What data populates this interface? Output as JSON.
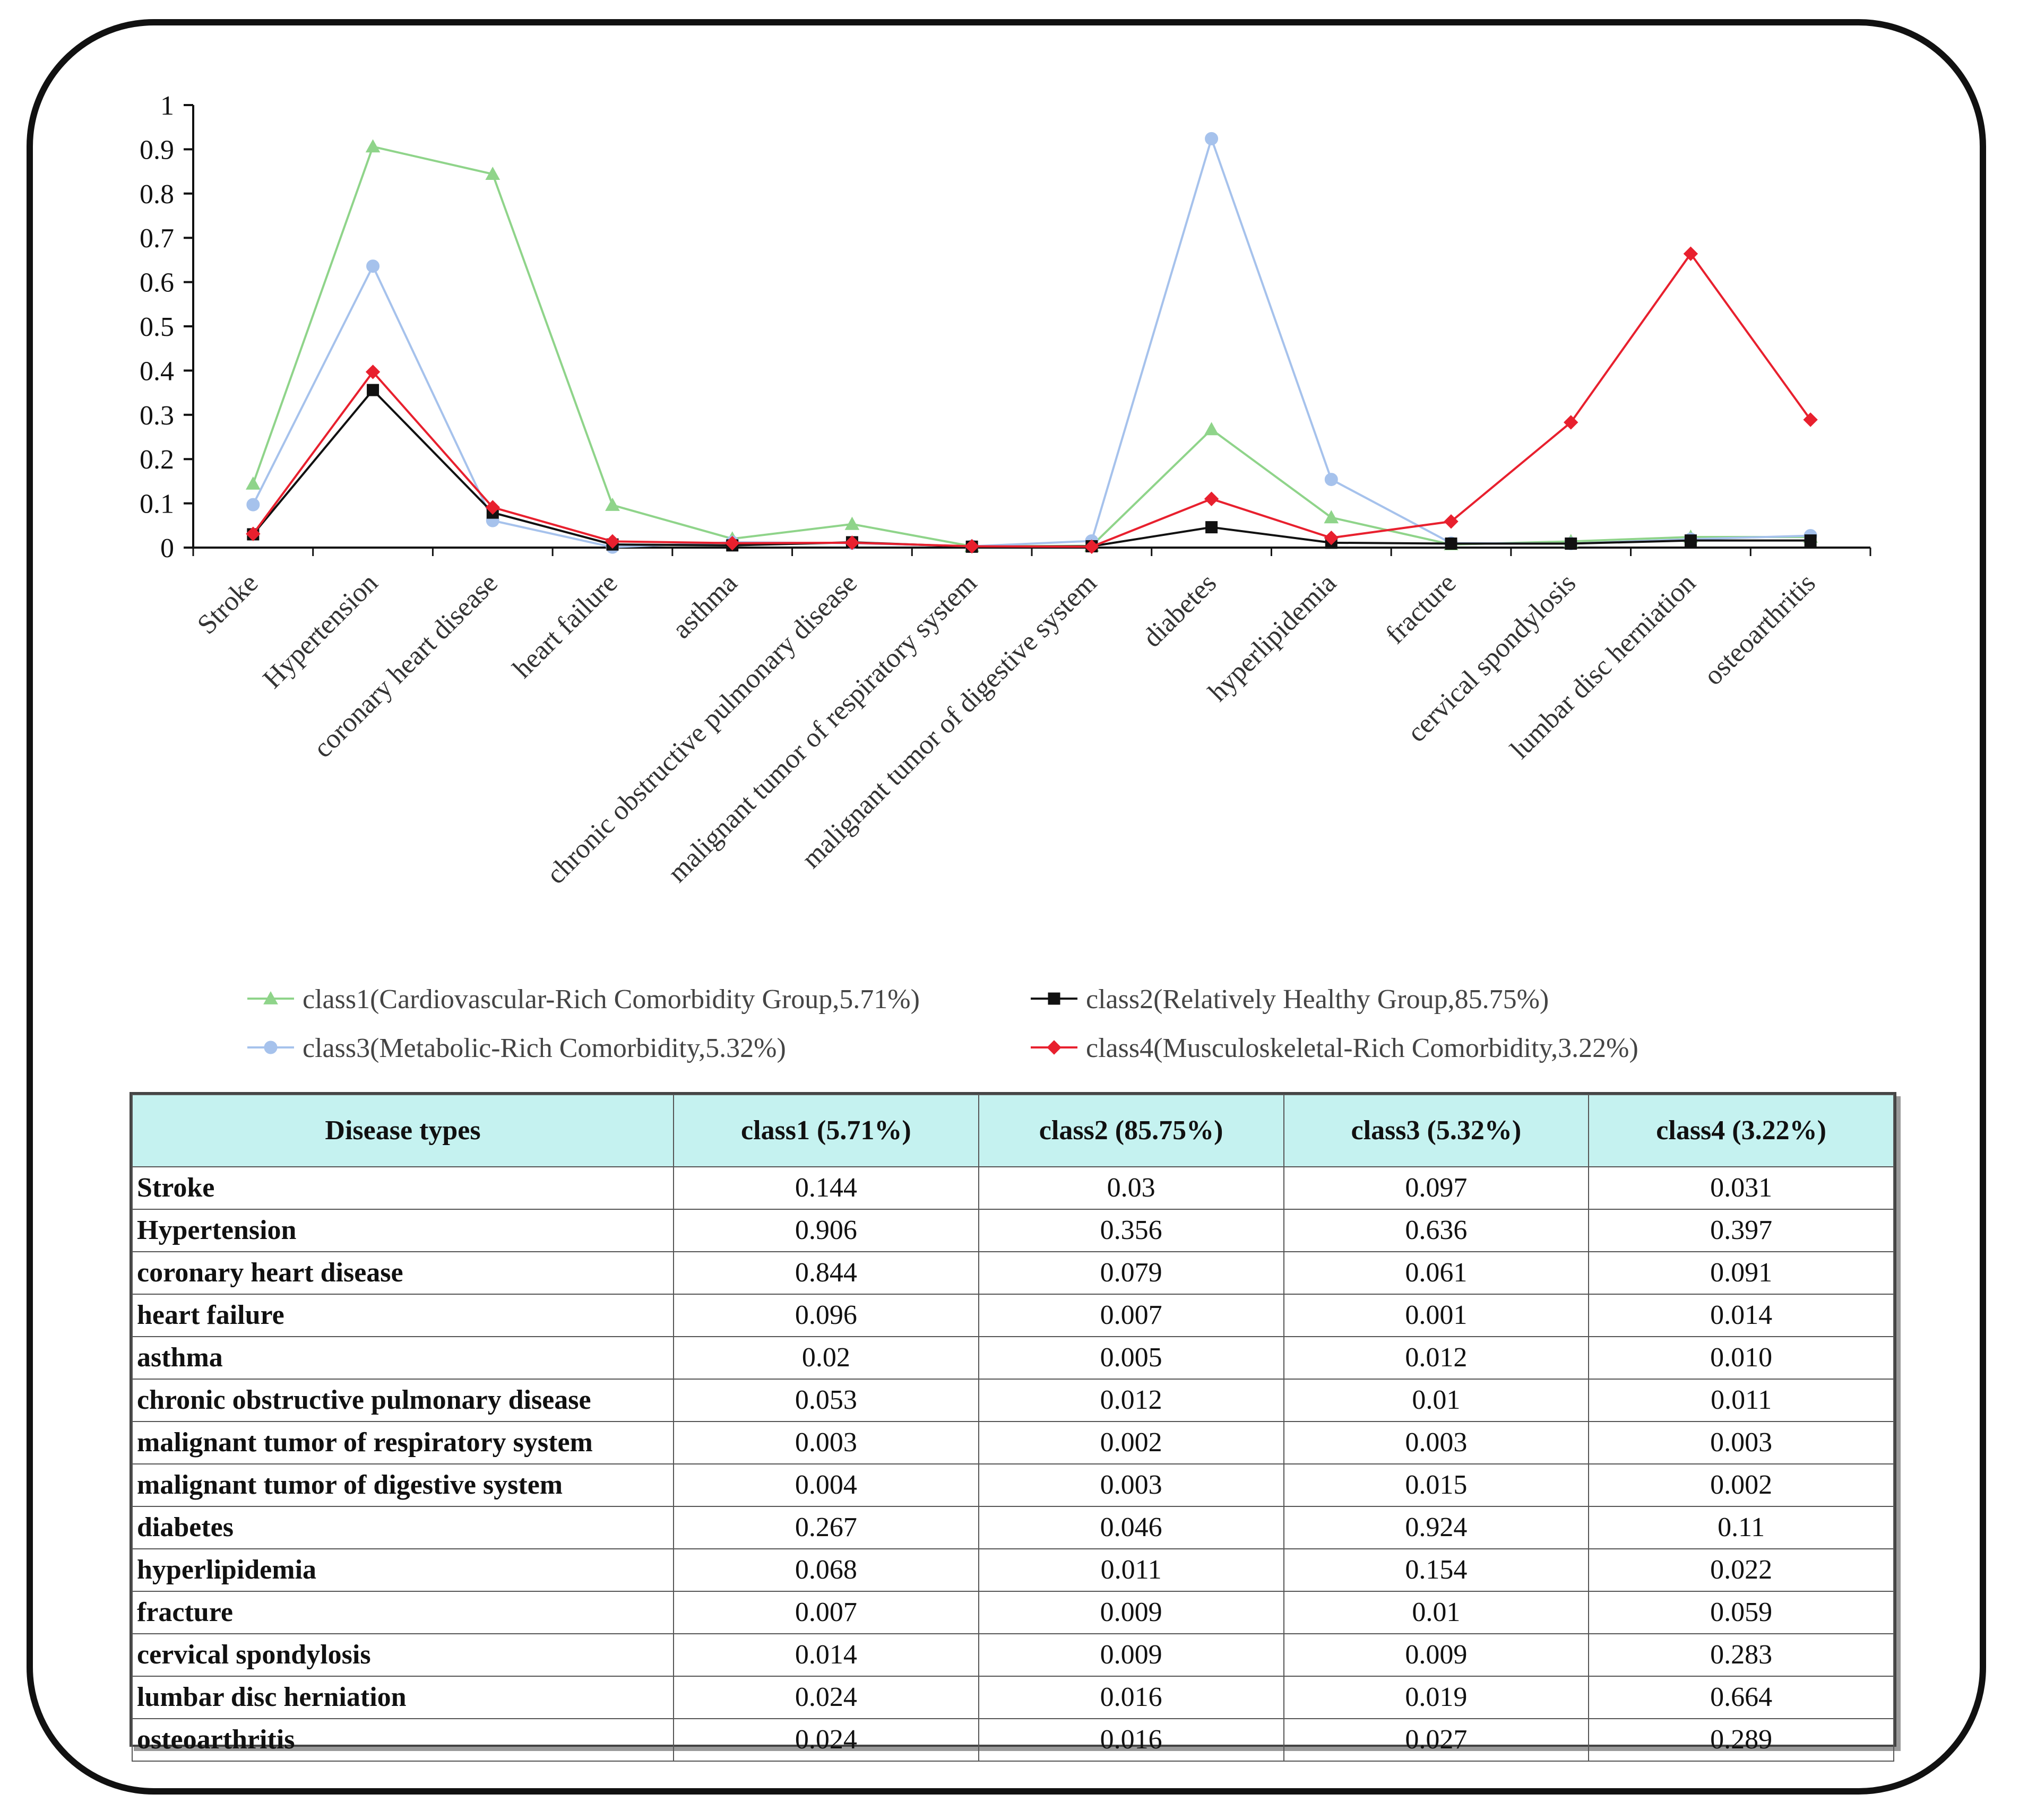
{
  "chart_data": {
    "type": "line",
    "title": "",
    "xlabel": "",
    "ylabel": "",
    "ylim": [
      0,
      1
    ],
    "yticks": [
      "0",
      "0.1",
      "0.2",
      "0.3",
      "0.4",
      "0.5",
      "0.6",
      "0.7",
      "0.8",
      "0.9",
      "1"
    ],
    "categories": [
      "Stroke",
      "Hypertension",
      "coronary heart disease",
      "heart failure",
      "asthma",
      "chronic obstructive pulmonary disease",
      "malignant tumor of respiratory system",
      "malignant tumor of digestive system",
      "diabetes",
      "hyperlipidemia",
      "fracture",
      "cervical spondylosis",
      "lumbar disc herniation",
      "osteoarthritis"
    ],
    "series": [
      {
        "name": "class1(Cardiovascular-Rich Comorbidity Group,5.71%)",
        "color": "#8fd48a",
        "marker": "triangle",
        "values": [
          0.144,
          0.906,
          0.844,
          0.096,
          0.02,
          0.053,
          0.003,
          0.004,
          0.267,
          0.068,
          0.007,
          0.014,
          0.024,
          0.024
        ]
      },
      {
        "name": "class2(Relatively Healthy Group,85.75%)",
        "color": "#111111",
        "marker": "square",
        "values": [
          0.03,
          0.356,
          0.079,
          0.007,
          0.005,
          0.012,
          0.002,
          0.003,
          0.046,
          0.011,
          0.009,
          0.009,
          0.016,
          0.016
        ]
      },
      {
        "name": "class3(Metabolic-Rich Comorbidity,5.32%)",
        "color": "#a6c2ec",
        "marker": "circle",
        "values": [
          0.097,
          0.636,
          0.061,
          0.001,
          0.012,
          0.01,
          0.003,
          0.015,
          0.924,
          0.154,
          0.01,
          0.009,
          0.019,
          0.027
        ]
      },
      {
        "name": "class4(Musculoskeletal-Rich Comorbidity,3.22%)",
        "color": "#e8202e",
        "marker": "diamond",
        "values": [
          0.031,
          0.397,
          0.091,
          0.014,
          0.01,
          0.011,
          0.003,
          0.002,
          0.11,
          0.022,
          0.059,
          0.283,
          0.664,
          0.289
        ]
      }
    ],
    "legend_position": "bottom",
    "grid": false
  },
  "table": {
    "headers": [
      "Disease types",
      "class1 (5.71%)",
      "class2 (85.75%)",
      "class3 (5.32%)",
      "class4 (3.22%)"
    ],
    "rows": [
      [
        "Stroke",
        "0.144",
        "0.03",
        "0.097",
        "0.031"
      ],
      [
        "Hypertension",
        "0.906",
        "0.356",
        "0.636",
        "0.397"
      ],
      [
        "coronary heart disease",
        "0.844",
        "0.079",
        "0.061",
        "0.091"
      ],
      [
        "heart failure",
        "0.096",
        "0.007",
        "0.001",
        "0.014"
      ],
      [
        "asthma",
        "0.02",
        "0.005",
        "0.012",
        "0.010"
      ],
      [
        "chronic obstructive pulmonary disease",
        "0.053",
        "0.012",
        "0.01",
        "0.011"
      ],
      [
        "malignant tumor of respiratory system",
        "0.003",
        "0.002",
        "0.003",
        "0.003"
      ],
      [
        "malignant tumor of digestive system",
        "0.004",
        "0.003",
        "0.015",
        "0.002"
      ],
      [
        "diabetes",
        "0.267",
        "0.046",
        "0.924",
        "0.11"
      ],
      [
        "hyperlipidemia",
        "0.068",
        "0.011",
        "0.154",
        "0.022"
      ],
      [
        "fracture",
        "0.007",
        "0.009",
        "0.01",
        "0.059"
      ],
      [
        "cervical spondylosis",
        "0.014",
        "0.009",
        "0.009",
        "0.283"
      ],
      [
        "lumbar disc herniation",
        "0.024",
        "0.016",
        "0.019",
        "0.664"
      ],
      [
        "osteoarthritis",
        "0.024",
        "0.016",
        "0.027",
        "0.289"
      ]
    ]
  }
}
